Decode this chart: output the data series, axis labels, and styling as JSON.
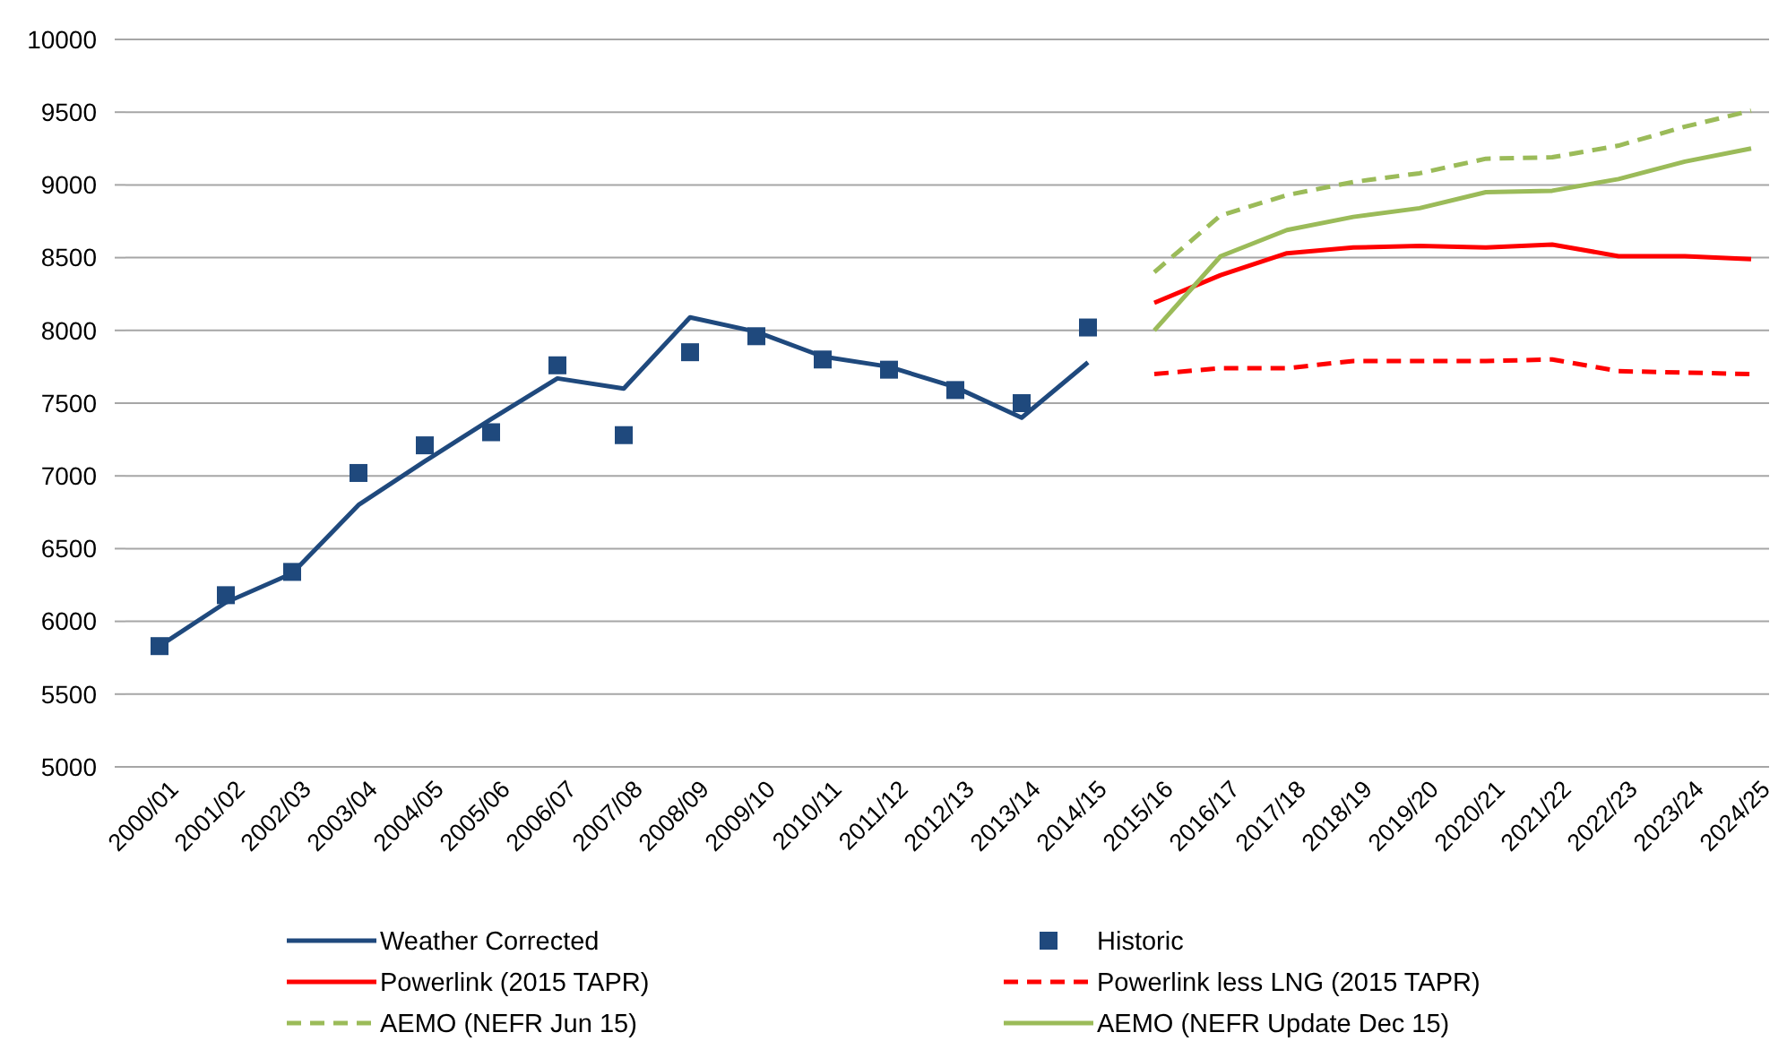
{
  "chart_data": {
    "type": "line",
    "categories": [
      "2000/01",
      "2001/02",
      "2002/03",
      "2003/04",
      "2004/05",
      "2005/06",
      "2006/07",
      "2007/08",
      "2008/09",
      "2009/10",
      "2010/11",
      "2011/12",
      "2012/13",
      "2013/14",
      "2014/15",
      "2015/16",
      "2016/17",
      "2017/18",
      "2018/19",
      "2019/20",
      "2020/21",
      "2021/22",
      "2022/23",
      "2023/24",
      "2024/25"
    ],
    "ylim": [
      5000,
      10000
    ],
    "yticks": [
      5000,
      5500,
      6000,
      6500,
      7000,
      7500,
      8000,
      8500,
      9000,
      9500,
      10000
    ],
    "grid": "y",
    "legend": "bottom",
    "series": [
      {
        "name": "Weather Corrected",
        "color": "#1f497d",
        "line_style": "solid",
        "values": [
          5830,
          6130,
          6330,
          6800,
          7100,
          7390,
          7670,
          7600,
          8090,
          7990,
          7820,
          7750,
          7610,
          7400,
          7780,
          null,
          null,
          null,
          null,
          null,
          null,
          null,
          null,
          null,
          null
        ]
      },
      {
        "name": "Historic",
        "color": "#1f497d",
        "type": "scatter",
        "marker": "square",
        "values": [
          5830,
          6180,
          6340,
          7020,
          7210,
          7300,
          7760,
          7280,
          7850,
          7960,
          7800,
          7730,
          7590,
          7500,
          8020,
          null,
          null,
          null,
          null,
          null,
          null,
          null,
          null,
          null,
          null
        ]
      },
      {
        "name": "Powerlink (2015 TAPR)",
        "color": "#ff0000",
        "line_style": "solid",
        "values": [
          null,
          null,
          null,
          null,
          null,
          null,
          null,
          null,
          null,
          null,
          null,
          null,
          null,
          null,
          null,
          8190,
          8380,
          8530,
          8570,
          8580,
          8570,
          8590,
          8510,
          8510,
          8490
        ]
      },
      {
        "name": "Powerlink less LNG (2015 TAPR)",
        "color": "#ff0000",
        "line_style": "dashed",
        "values": [
          null,
          null,
          null,
          null,
          null,
          null,
          null,
          null,
          null,
          null,
          null,
          null,
          null,
          null,
          null,
          7700,
          7740,
          7740,
          7790,
          7790,
          7790,
          7800,
          7720,
          7710,
          7700
        ]
      },
      {
        "name": "AEMO (NEFR Jun 15)",
        "color": "#9bbb59",
        "line_style": "dashed",
        "values": [
          null,
          null,
          null,
          null,
          null,
          null,
          null,
          null,
          null,
          null,
          null,
          null,
          null,
          null,
          null,
          8400,
          8790,
          8930,
          9020,
          9080,
          9180,
          9190,
          9270,
          9400,
          9510
        ]
      },
      {
        "name": "AEMO (NEFR Update Dec 15)",
        "color": "#9bbb59",
        "line_style": "solid",
        "values": [
          null,
          null,
          null,
          null,
          null,
          null,
          null,
          null,
          null,
          null,
          null,
          null,
          null,
          null,
          null,
          8000,
          8510,
          8690,
          8780,
          8840,
          8950,
          8960,
          9040,
          9160,
          9250
        ]
      }
    ]
  }
}
